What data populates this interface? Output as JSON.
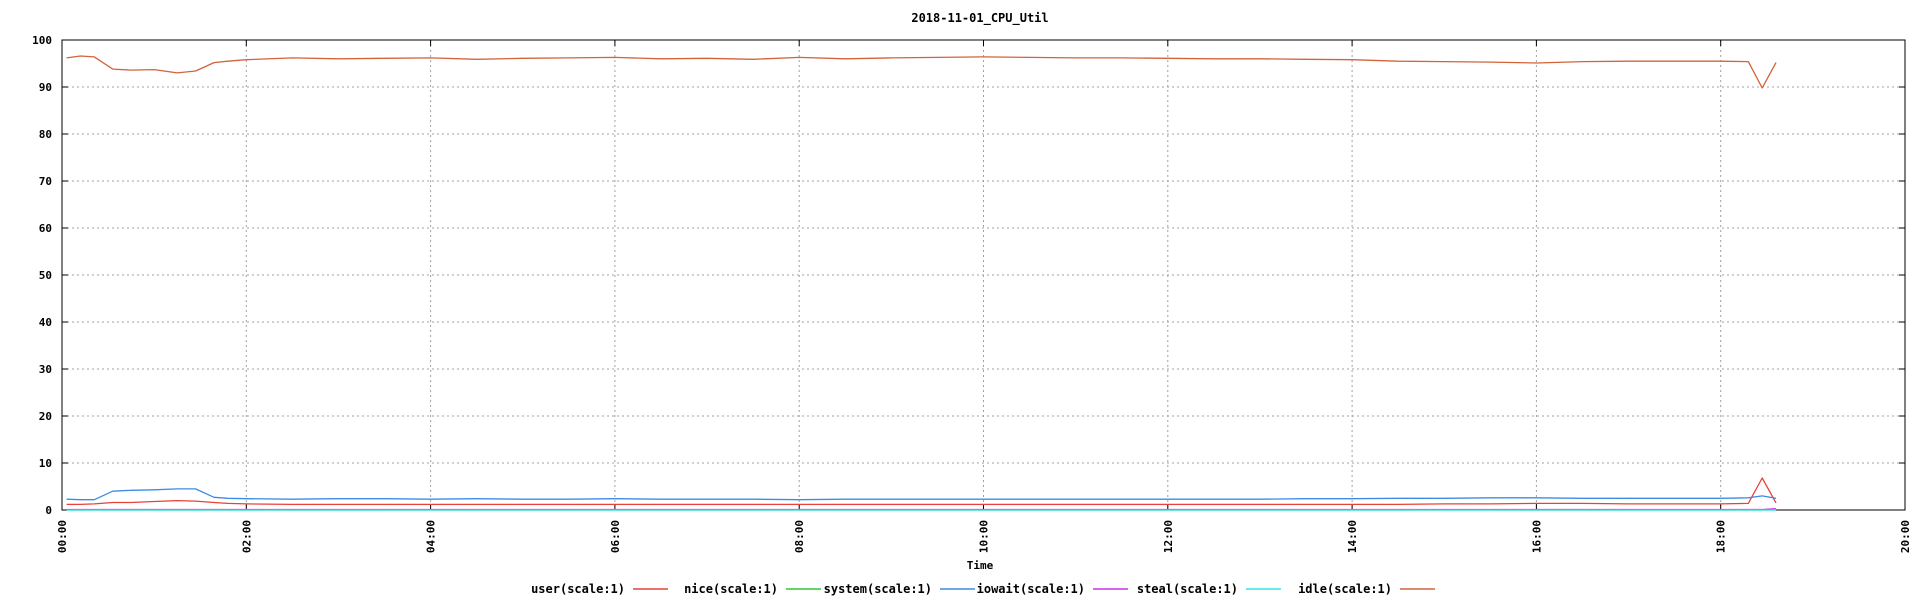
{
  "chart_data": {
    "type": "line",
    "title": "2018-11-01_CPU_Util",
    "xlabel": "Time",
    "ylabel": "",
    "ylim": [
      0,
      100
    ],
    "yticks": [
      0,
      10,
      20,
      30,
      40,
      50,
      60,
      70,
      80,
      90,
      100
    ],
    "xlim_hours": [
      0,
      20
    ],
    "xticks": [
      "00:00",
      "02:00",
      "04:00",
      "06:00",
      "08:00",
      "10:00",
      "12:00",
      "14:00",
      "16:00",
      "18:00",
      "20:00"
    ],
    "grid": true,
    "legend_position": "bottom",
    "x_hours": [
      0.05,
      0.2,
      0.35,
      0.55,
      0.75,
      1.0,
      1.25,
      1.45,
      1.65,
      1.8,
      2.0,
      2.5,
      3.0,
      3.5,
      4.0,
      4.5,
      5.0,
      5.5,
      6.0,
      6.5,
      7.0,
      7.5,
      8.0,
      8.5,
      9.0,
      9.5,
      10.0,
      10.5,
      11.0,
      11.5,
      12.0,
      12.5,
      13.0,
      13.5,
      14.0,
      14.5,
      15.0,
      15.5,
      16.0,
      16.5,
      17.0,
      17.5,
      18.0,
      18.3,
      18.45,
      18.6
    ],
    "series": [
      {
        "name": "user(scale:1)",
        "color": "#e8413a",
        "values": [
          1.2,
          1.2,
          1.3,
          1.6,
          1.6,
          1.8,
          2.0,
          1.9,
          1.6,
          1.4,
          1.3,
          1.2,
          1.2,
          1.2,
          1.2,
          1.2,
          1.2,
          1.2,
          1.2,
          1.2,
          1.2,
          1.2,
          1.2,
          1.2,
          1.2,
          1.2,
          1.2,
          1.2,
          1.2,
          1.2,
          1.2,
          1.2,
          1.2,
          1.2,
          1.2,
          1.2,
          1.3,
          1.3,
          1.4,
          1.4,
          1.3,
          1.3,
          1.3,
          1.4,
          6.8,
          1.5
        ]
      },
      {
        "name": "nice(scale:1)",
        "color": "#32c832",
        "values": [
          0,
          0,
          0,
          0,
          0,
          0,
          0,
          0,
          0,
          0,
          0,
          0,
          0,
          0,
          0,
          0,
          0,
          0,
          0,
          0,
          0,
          0,
          0,
          0,
          0,
          0,
          0,
          0,
          0,
          0,
          0,
          0,
          0,
          0,
          0,
          0,
          0,
          0,
          0,
          0,
          0,
          0,
          0,
          0,
          0,
          0
        ]
      },
      {
        "name": "system(scale:1)",
        "color": "#3c8ce6",
        "values": [
          2.3,
          2.2,
          2.2,
          4.0,
          4.2,
          4.3,
          4.5,
          4.5,
          2.7,
          2.5,
          2.4,
          2.3,
          2.4,
          2.4,
          2.3,
          2.4,
          2.3,
          2.3,
          2.4,
          2.3,
          2.3,
          2.3,
          2.2,
          2.3,
          2.3,
          2.3,
          2.3,
          2.3,
          2.3,
          2.3,
          2.3,
          2.3,
          2.3,
          2.4,
          2.4,
          2.5,
          2.5,
          2.6,
          2.6,
          2.5,
          2.5,
          2.5,
          2.5,
          2.6,
          3.0,
          2.5
        ]
      },
      {
        "name": "iowait(scale:1)",
        "color": "#c832e6",
        "values": [
          0.1,
          0.1,
          0.1,
          0.1,
          0.1,
          0.1,
          0.1,
          0.1,
          0.1,
          0.1,
          0.1,
          0.1,
          0.1,
          0.1,
          0.1,
          0.1,
          0.1,
          0.1,
          0.1,
          0.1,
          0.1,
          0.1,
          0.1,
          0.1,
          0.1,
          0.1,
          0.1,
          0.1,
          0.1,
          0.1,
          0.1,
          0.1,
          0.1,
          0.1,
          0.1,
          0.1,
          0.1,
          0.1,
          0.1,
          0.1,
          0.1,
          0.1,
          0.1,
          0.1,
          0.1,
          0.3
        ]
      },
      {
        "name": "steal(scale:1)",
        "color": "#32e6e6",
        "values": [
          0,
          0,
          0,
          0,
          0,
          0,
          0,
          0,
          0,
          0,
          0,
          0,
          0,
          0,
          0,
          0,
          0,
          0,
          0,
          0,
          0,
          0,
          0,
          0,
          0,
          0,
          0,
          0,
          0,
          0,
          0,
          0,
          0,
          0,
          0,
          0,
          0,
          0,
          0,
          0,
          0,
          0,
          0,
          0,
          0,
          0
        ]
      },
      {
        "name": "idle(scale:1)",
        "color": "#d2643c",
        "values": [
          96.2,
          96.6,
          96.4,
          93.8,
          93.6,
          93.7,
          93.0,
          93.4,
          95.2,
          95.5,
          95.8,
          96.2,
          96.0,
          96.1,
          96.2,
          95.9,
          96.1,
          96.2,
          96.3,
          96.0,
          96.1,
          95.9,
          96.3,
          96.0,
          96.2,
          96.3,
          96.4,
          96.3,
          96.2,
          96.2,
          96.1,
          96.0,
          96.0,
          95.9,
          95.8,
          95.5,
          95.4,
          95.3,
          95.1,
          95.4,
          95.5,
          95.5,
          95.5,
          95.4,
          89.8,
          95.2
        ]
      }
    ]
  }
}
